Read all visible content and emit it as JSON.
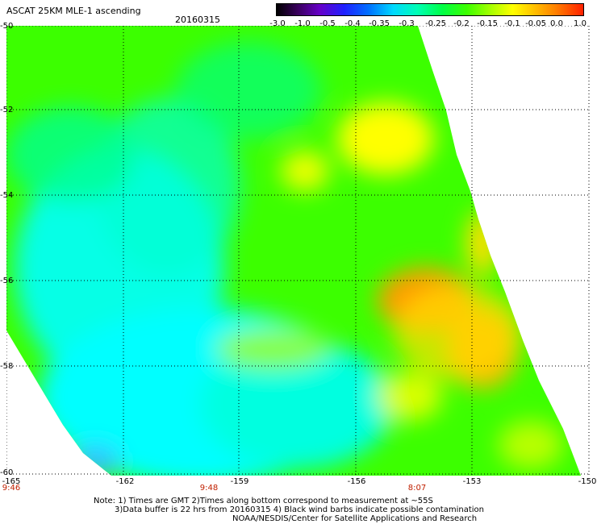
{
  "header": {
    "title": "ASCAT 25KM MLE-1 ascending",
    "date": "20160315"
  },
  "colorbar": {
    "labels": [
      "-3.0",
      "-1.0",
      "-0.5",
      "-0.4",
      "-0.35",
      "-0.3",
      "-0.25",
      "-0.2",
      "-0.15",
      "-0.1",
      "-0.05",
      "0.0",
      "1.0"
    ]
  },
  "axes": {
    "lat_labels": [
      "-50",
      "-52",
      "-54",
      "-56",
      "-58",
      "-60"
    ],
    "lon_labels": [
      "-165",
      "-162",
      "-159",
      "-156",
      "-153",
      "-150"
    ],
    "time_labels": [
      "9:46",
      "9:48",
      "8:07"
    ]
  },
  "footer": {
    "line1": "Note: 1) Times are GMT 2)Times along bottom correspond to measurement at ~55S",
    "line2": "3)Data buffer is 22 hrs from 20160315 4) Black wind barbs indicate possible contamination",
    "line3": "NOAA/NESDIS/Center for Satellite Applications and Research"
  },
  "colors": {
    "cyan": "#00ffff",
    "green": "#3cff00",
    "yellow": "#ffff00",
    "orange": "#ff9000"
  }
}
